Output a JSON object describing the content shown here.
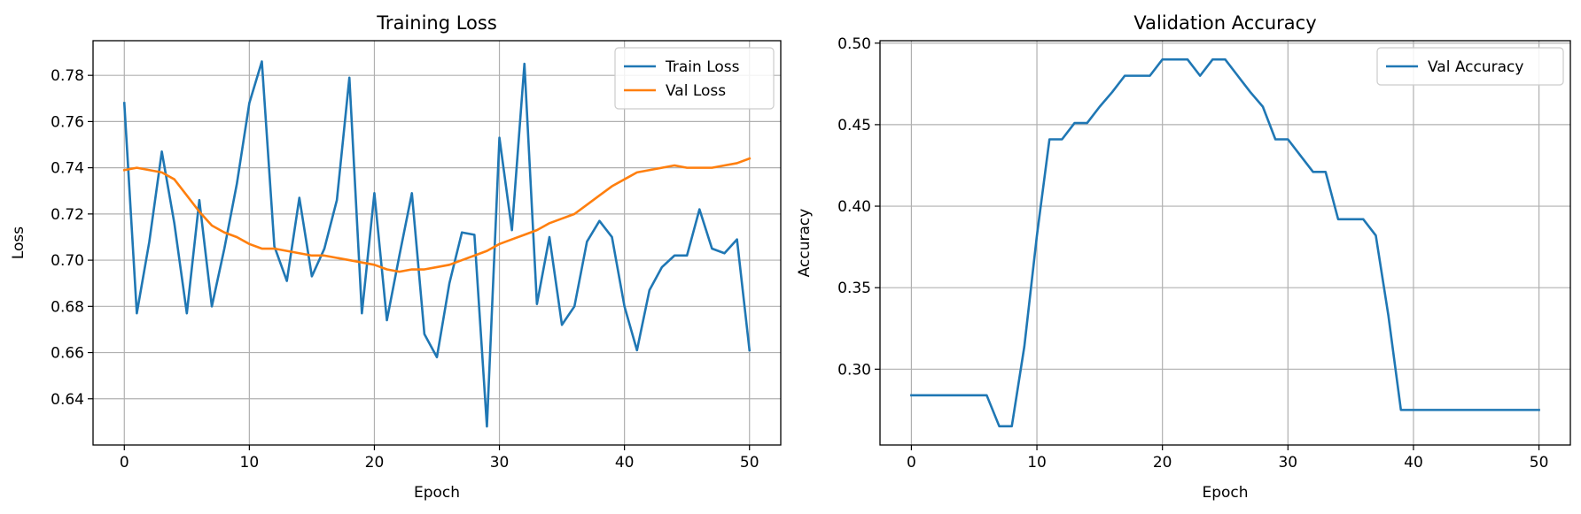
{
  "chart_data": [
    {
      "type": "line",
      "title": "Training Loss",
      "xlabel": "Epoch",
      "ylabel": "Loss",
      "xlim": [
        -2.5,
        52.5
      ],
      "ylim": [
        0.62,
        0.795
      ],
      "xticks": [
        0,
        10,
        20,
        30,
        40,
        50
      ],
      "yticks": [
        0.64,
        0.66,
        0.68,
        0.7,
        0.72,
        0.74,
        0.76,
        0.78
      ],
      "ytick_labels": [
        "0.64",
        "0.66",
        "0.68",
        "0.70",
        "0.72",
        "0.74",
        "0.76",
        "0.78"
      ],
      "grid": true,
      "legend_position": "top-right",
      "series": [
        {
          "name": "Train Loss",
          "color": "#1f77b4",
          "x": [
            0,
            1,
            2,
            3,
            4,
            5,
            6,
            7,
            8,
            9,
            10,
            11,
            12,
            13,
            14,
            15,
            16,
            17,
            18,
            19,
            20,
            21,
            22,
            23,
            24,
            25,
            26,
            27,
            28,
            29,
            30,
            31,
            32,
            33,
            34,
            35,
            36,
            37,
            38,
            39,
            40,
            41,
            42,
            43,
            44,
            45,
            46,
            47,
            48,
            49,
            50
          ],
          "values": [
            0.768,
            0.677,
            0.708,
            0.747,
            0.716,
            0.677,
            0.726,
            0.68,
            0.705,
            0.733,
            0.768,
            0.786,
            0.706,
            0.691,
            0.727,
            0.693,
            0.705,
            0.726,
            0.779,
            0.677,
            0.729,
            0.674,
            0.702,
            0.729,
            0.668,
            0.658,
            0.69,
            0.712,
            0.711,
            0.628,
            0.753,
            0.713,
            0.785,
            0.681,
            0.71,
            0.672,
            0.68,
            0.708,
            0.717,
            0.71,
            0.68,
            0.661,
            0.687,
            0.697,
            0.702,
            0.702,
            0.722,
            0.705,
            0.703,
            0.709,
            0.661
          ]
        },
        {
          "name": "Val Loss",
          "color": "#ff7f0e",
          "x": [
            0,
            1,
            2,
            3,
            4,
            5,
            6,
            7,
            8,
            9,
            10,
            11,
            12,
            13,
            14,
            15,
            16,
            17,
            18,
            19,
            20,
            21,
            22,
            23,
            24,
            25,
            26,
            27,
            28,
            29,
            30,
            31,
            32,
            33,
            34,
            35,
            36,
            37,
            38,
            39,
            40,
            41,
            42,
            43,
            44,
            45,
            46,
            47,
            48,
            49,
            50
          ],
          "values": [
            0.739,
            0.74,
            0.739,
            0.738,
            0.735,
            0.728,
            0.721,
            0.715,
            0.712,
            0.71,
            0.707,
            0.705,
            0.705,
            0.704,
            0.703,
            0.702,
            0.702,
            0.701,
            0.7,
            0.699,
            0.698,
            0.696,
            0.695,
            0.696,
            0.696,
            0.697,
            0.698,
            0.7,
            0.702,
            0.704,
            0.707,
            0.709,
            0.711,
            0.713,
            0.716,
            0.718,
            0.72,
            0.724,
            0.728,
            0.732,
            0.735,
            0.738,
            0.739,
            0.74,
            0.741,
            0.74,
            0.74,
            0.74,
            0.741,
            0.742,
            0.744
          ]
        }
      ]
    },
    {
      "type": "line",
      "title": "Validation Accuracy",
      "xlabel": "Epoch",
      "ylabel": "Accuracy",
      "xlim": [
        -2.5,
        52.5
      ],
      "ylim": [
        0.2535,
        0.5015
      ],
      "xticks": [
        0,
        10,
        20,
        30,
        40,
        50
      ],
      "yticks": [
        0.3,
        0.35,
        0.4,
        0.45,
        0.5
      ],
      "ytick_labels": [
        "0.30",
        "0.35",
        "0.40",
        "0.45",
        "0.50"
      ],
      "grid": true,
      "legend_position": "top-right",
      "series": [
        {
          "name": "Val Accuracy",
          "color": "#1f77b4",
          "x": [
            0,
            1,
            2,
            3,
            4,
            5,
            6,
            7,
            8,
            9,
            10,
            11,
            12,
            13,
            14,
            15,
            16,
            17,
            18,
            19,
            20,
            21,
            22,
            23,
            24,
            25,
            26,
            27,
            28,
            29,
            30,
            31,
            32,
            33,
            34,
            35,
            36,
            37,
            38,
            39,
            40,
            41,
            42,
            43,
            44,
            45,
            46,
            47,
            48,
            49,
            50
          ],
          "values": [
            0.284,
            0.284,
            0.284,
            0.284,
            0.284,
            0.284,
            0.284,
            0.265,
            0.265,
            0.314,
            0.382,
            0.441,
            0.441,
            0.451,
            0.451,
            0.461,
            0.47,
            0.48,
            0.48,
            0.48,
            0.49,
            0.49,
            0.49,
            0.48,
            0.49,
            0.49,
            0.48,
            0.47,
            0.461,
            0.441,
            0.441,
            0.431,
            0.421,
            0.421,
            0.392,
            0.392,
            0.392,
            0.382,
            0.333,
            0.275,
            0.275,
            0.275,
            0.275,
            0.275,
            0.275,
            0.275,
            0.275,
            0.275,
            0.275,
            0.275,
            0.275
          ]
        }
      ]
    }
  ]
}
